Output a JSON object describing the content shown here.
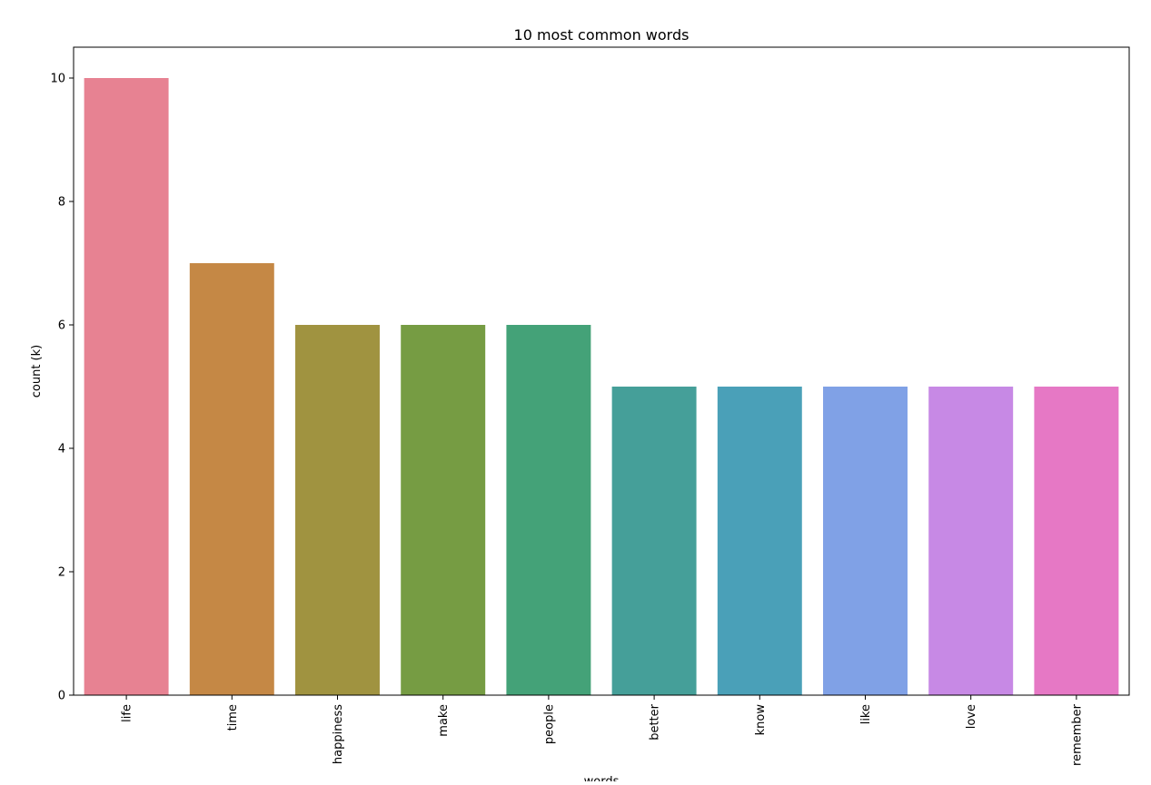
{
  "chart_data": {
    "type": "bar",
    "title": "10 most common words",
    "xlabel": "words",
    "ylabel": "count (k)",
    "categories": [
      "life",
      "time",
      "happiness",
      "make",
      "people",
      "better",
      "know",
      "like",
      "love",
      "remember"
    ],
    "values": [
      10,
      7,
      6,
      6,
      6,
      5,
      5,
      5,
      5,
      5
    ],
    "colors": [
      "#e78292",
      "#c58845",
      "#a09340",
      "#769c43",
      "#44a278",
      "#459f99",
      "#4aa0b8",
      "#80a1e6",
      "#c789e5",
      "#e678c5"
    ],
    "ylim": [
      0,
      10.5
    ],
    "yticks": [
      "0",
      "2",
      "4",
      "6",
      "8",
      "10"
    ],
    "grid": false,
    "legend": false
  }
}
